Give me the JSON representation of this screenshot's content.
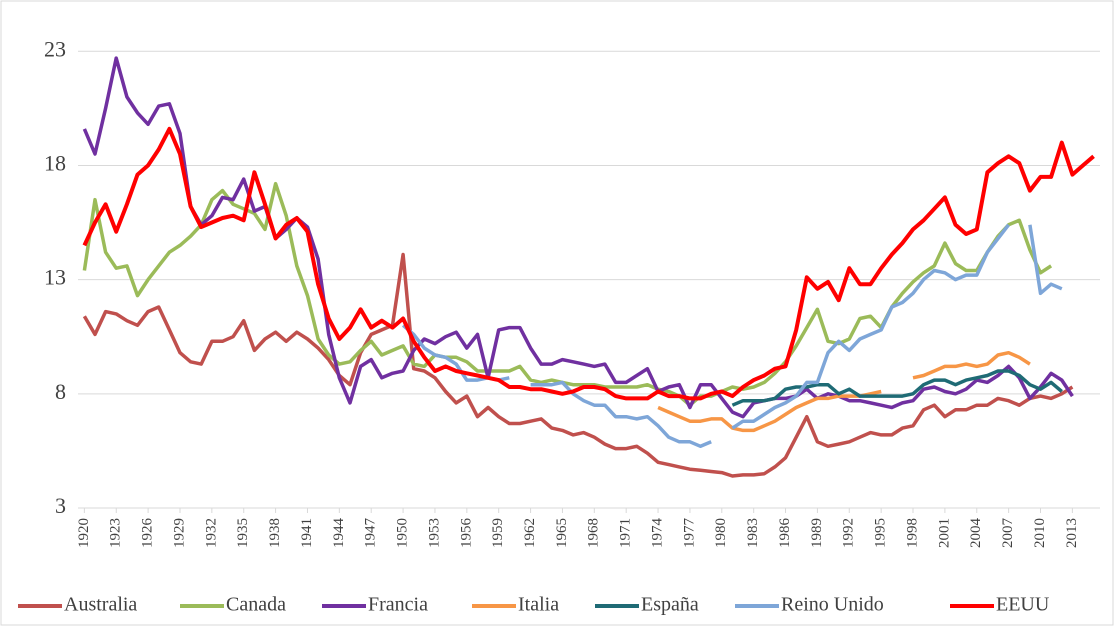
{
  "chart_data": {
    "type": "line",
    "x": [
      1920,
      1921,
      1922,
      1923,
      1924,
      1925,
      1926,
      1927,
      1928,
      1929,
      1930,
      1931,
      1932,
      1933,
      1934,
      1935,
      1936,
      1937,
      1938,
      1939,
      1940,
      1941,
      1942,
      1943,
      1944,
      1945,
      1946,
      1947,
      1948,
      1949,
      1950,
      1951,
      1952,
      1953,
      1954,
      1955,
      1956,
      1957,
      1958,
      1959,
      1960,
      1961,
      1962,
      1963,
      1964,
      1965,
      1966,
      1967,
      1968,
      1969,
      1970,
      1971,
      1972,
      1973,
      1974,
      1975,
      1976,
      1977,
      1978,
      1979,
      1980,
      1981,
      1982,
      1983,
      1984,
      1985,
      1986,
      1987,
      1988,
      1989,
      1990,
      1991,
      1992,
      1993,
      1994,
      1995,
      1996,
      1997,
      1998,
      1999,
      2000,
      2001,
      2002,
      2003,
      2004,
      2005,
      2006,
      2007,
      2008,
      2009,
      2010,
      2011,
      2012,
      2013,
      2014,
      2015
    ],
    "xlim": [
      1919.4,
      2015.6
    ],
    "xticks": [
      1920,
      1923,
      1926,
      1929,
      1932,
      1935,
      1938,
      1941,
      1944,
      1947,
      1950,
      1953,
      1956,
      1959,
      1962,
      1965,
      1968,
      1971,
      1974,
      1977,
      1980,
      1983,
      1986,
      1989,
      1992,
      1995,
      1998,
      2001,
      2004,
      2007,
      2010,
      2013
    ],
    "ylim": [
      3,
      24.5
    ],
    "yticks": [
      3,
      8,
      13,
      18,
      23
    ],
    "grid": true,
    "legend": "bottom",
    "series": [
      {
        "name": "Australia",
        "color": "#c0504d",
        "values": [
          11.4,
          10.6,
          11.6,
          11.5,
          11.2,
          11.0,
          11.6,
          11.8,
          10.8,
          9.8,
          9.4,
          9.3,
          10.3,
          10.3,
          10.5,
          11.2,
          9.9,
          10.4,
          10.7,
          10.3,
          10.7,
          10.4,
          10.0,
          9.5,
          8.8,
          8.4,
          9.8,
          10.6,
          10.8,
          11.0,
          14.1,
          9.1,
          9.0,
          8.7,
          8.1,
          7.6,
          7.9,
          7.0,
          7.4,
          7.0,
          6.7,
          6.7,
          6.8,
          6.9,
          6.5,
          6.4,
          6.2,
          6.3,
          6.1,
          5.8,
          5.6,
          5.6,
          5.7,
          5.4,
          5.0,
          4.9,
          4.8,
          4.7,
          4.65,
          4.6,
          4.55,
          4.4,
          4.45,
          4.45,
          4.5,
          4.8,
          5.2,
          6.1,
          7.0,
          5.9,
          5.7,
          5.8,
          5.9,
          6.1,
          6.3,
          6.2,
          6.2,
          6.5,
          6.6,
          7.3,
          7.5,
          7.0,
          7.3,
          7.3,
          7.5,
          7.5,
          7.8,
          7.7,
          7.5,
          7.8,
          7.9,
          7.8,
          8.0,
          8.3,
          null,
          null
        ]
      },
      {
        "name": "Canada",
        "color": "#9bbb59",
        "values": [
          13.4,
          16.5,
          14.2,
          13.5,
          13.6,
          12.3,
          13.0,
          13.6,
          14.2,
          14.5,
          14.9,
          15.4,
          16.5,
          16.9,
          16.3,
          16.1,
          15.9,
          15.2,
          17.2,
          15.8,
          13.6,
          12.3,
          10.4,
          9.7,
          9.3,
          9.4,
          9.9,
          10.3,
          9.7,
          9.9,
          10.1,
          9.3,
          9.2,
          9.7,
          9.6,
          9.6,
          9.4,
          9.0,
          9.0,
          9.0,
          9.0,
          9.2,
          8.6,
          8.5,
          8.6,
          8.5,
          8.4,
          8.4,
          8.4,
          8.3,
          8.3,
          8.3,
          8.3,
          8.4,
          8.2,
          8.1,
          7.9,
          7.5,
          7.9,
          7.9,
          8.1,
          8.3,
          8.2,
          8.3,
          8.5,
          8.9,
          9.4,
          10.1,
          10.9,
          11.7,
          10.3,
          10.2,
          10.4,
          11.3,
          11.4,
          10.9,
          11.8,
          12.4,
          12.9,
          13.3,
          13.6,
          14.6,
          13.7,
          13.4,
          13.4,
          14.2,
          14.9,
          15.4,
          15.6,
          14.3,
          13.3,
          13.6,
          null,
          null,
          null,
          null
        ]
      },
      {
        "name": "Francia",
        "color": "#7030a0",
        "values": [
          19.6,
          18.5,
          20.5,
          22.7,
          21.0,
          20.3,
          19.8,
          20.6,
          20.7,
          19.4,
          16.2,
          15.4,
          15.8,
          16.6,
          16.5,
          17.4,
          16.0,
          16.2,
          14.8,
          15.2,
          15.7,
          15.3,
          13.9,
          10.6,
          8.7,
          7.6,
          9.2,
          9.5,
          8.7,
          8.9,
          9.0,
          9.9,
          10.4,
          10.2,
          10.5,
          10.7,
          10.0,
          10.6,
          8.7,
          10.8,
          10.9,
          10.9,
          10.0,
          9.3,
          9.3,
          9.5,
          9.4,
          9.3,
          9.2,
          9.3,
          8.5,
          8.5,
          8.8,
          9.1,
          8.1,
          8.3,
          8.4,
          7.4,
          8.4,
          8.4,
          7.8,
          7.2,
          7.0,
          7.6,
          7.7,
          7.8,
          7.8,
          7.9,
          8.2,
          7.8,
          8.0,
          7.9,
          7.7,
          7.7,
          7.6,
          7.5,
          7.4,
          7.6,
          7.7,
          8.2,
          8.3,
          8.1,
          8.0,
          8.2,
          8.6,
          8.5,
          8.8,
          9.2,
          8.7,
          7.8,
          8.3,
          8.9,
          8.6,
          7.9,
          null,
          null
        ]
      },
      {
        "name": "Italia",
        "color": "#f79646",
        "values": [
          null,
          null,
          null,
          null,
          null,
          null,
          null,
          null,
          null,
          null,
          null,
          null,
          null,
          null,
          null,
          null,
          null,
          null,
          null,
          null,
          null,
          null,
          null,
          null,
          null,
          null,
          null,
          null,
          null,
          null,
          null,
          null,
          null,
          null,
          null,
          null,
          null,
          null,
          null,
          null,
          null,
          null,
          null,
          null,
          null,
          null,
          null,
          null,
          null,
          null,
          null,
          null,
          null,
          null,
          7.4,
          7.2,
          7.0,
          6.8,
          6.8,
          6.9,
          6.9,
          6.5,
          6.4,
          6.4,
          6.6,
          6.8,
          7.1,
          7.4,
          7.6,
          7.8,
          7.8,
          7.9,
          7.9,
          7.9,
          8.0,
          8.1,
          null,
          null,
          8.7,
          8.8,
          9.0,
          9.2,
          9.2,
          9.3,
          9.2,
          9.3,
          9.7,
          9.8,
          9.6,
          9.3,
          null,
          null,
          null,
          null,
          null,
          null
        ]
      },
      {
        "name": "España",
        "color": "#1f6b75",
        "values": [
          null,
          null,
          null,
          null,
          null,
          null,
          null,
          null,
          null,
          null,
          null,
          null,
          null,
          null,
          null,
          null,
          null,
          null,
          null,
          null,
          null,
          null,
          null,
          null,
          null,
          null,
          null,
          null,
          null,
          null,
          null,
          null,
          null,
          null,
          null,
          null,
          null,
          null,
          null,
          null,
          null,
          null,
          null,
          null,
          null,
          null,
          null,
          null,
          null,
          null,
          null,
          null,
          null,
          null,
          null,
          null,
          null,
          null,
          null,
          null,
          null,
          7.5,
          7.7,
          7.7,
          7.7,
          7.8,
          8.2,
          8.3,
          8.3,
          8.4,
          8.4,
          8.0,
          8.2,
          7.9,
          7.9,
          7.9,
          7.9,
          7.9,
          8.0,
          8.4,
          8.6,
          8.6,
          8.4,
          8.6,
          8.7,
          8.8,
          9.0,
          9.0,
          8.8,
          8.4,
          8.2,
          8.5,
          8.1,
          null,
          null,
          null
        ]
      },
      {
        "name": "Reino Unido",
        "color": "#7ea6d8",
        "values": [
          null,
          null,
          null,
          null,
          null,
          null,
          null,
          null,
          null,
          null,
          null,
          null,
          null,
          null,
          null,
          null,
          null,
          null,
          null,
          null,
          null,
          null,
          null,
          null,
          null,
          null,
          null,
          null,
          null,
          null,
          11.0,
          10.6,
          10.0,
          9.7,
          9.6,
          9.3,
          8.6,
          8.6,
          8.7,
          8.6,
          8.7,
          null,
          8.4,
          8.4,
          8.4,
          8.5,
          8.0,
          7.7,
          7.5,
          7.5,
          7.0,
          7.0,
          6.9,
          7.0,
          6.6,
          6.1,
          5.9,
          5.9,
          5.7,
          5.9,
          null,
          6.5,
          6.8,
          6.8,
          7.1,
          7.4,
          7.6,
          7.9,
          8.5,
          8.5,
          9.8,
          10.3,
          9.9,
          10.4,
          10.6,
          10.8,
          11.8,
          12.0,
          12.4,
          13.0,
          13.4,
          13.3,
          13.0,
          13.2,
          13.2,
          14.2,
          14.8,
          15.4,
          null,
          15.4,
          12.4,
          12.8,
          12.6,
          null,
          null,
          null
        ]
      },
      {
        "name": "EEUU",
        "color": "#ff0000",
        "values": [
          14.5,
          15.5,
          16.3,
          15.1,
          16.3,
          17.6,
          18.0,
          18.7,
          19.6,
          18.5,
          16.2,
          15.3,
          15.5,
          15.7,
          15.8,
          15.6,
          17.7,
          16.3,
          14.8,
          15.4,
          15.7,
          15.1,
          12.8,
          11.3,
          10.4,
          10.9,
          11.7,
          10.9,
          11.2,
          10.9,
          11.3,
          10.3,
          9.6,
          9.0,
          9.2,
          9.0,
          8.9,
          8.8,
          8.7,
          8.6,
          8.3,
          8.3,
          8.2,
          8.2,
          8.1,
          8.0,
          8.1,
          8.3,
          8.3,
          8.2,
          7.9,
          7.8,
          7.8,
          7.8,
          8.1,
          7.9,
          7.9,
          7.8,
          7.8,
          8.0,
          8.1,
          7.9,
          8.3,
          8.6,
          8.8,
          9.1,
          9.2,
          10.8,
          13.1,
          12.6,
          12.9,
          12.1,
          13.5,
          12.8,
          12.8,
          13.5,
          14.1,
          14.6,
          15.2,
          15.6,
          16.1,
          16.6,
          15.4,
          15.0,
          15.2,
          17.7,
          18.1,
          18.4,
          18.1,
          16.9,
          17.5,
          17.5,
          19.0,
          17.6,
          18.0,
          18.4
        ]
      }
    ]
  }
}
